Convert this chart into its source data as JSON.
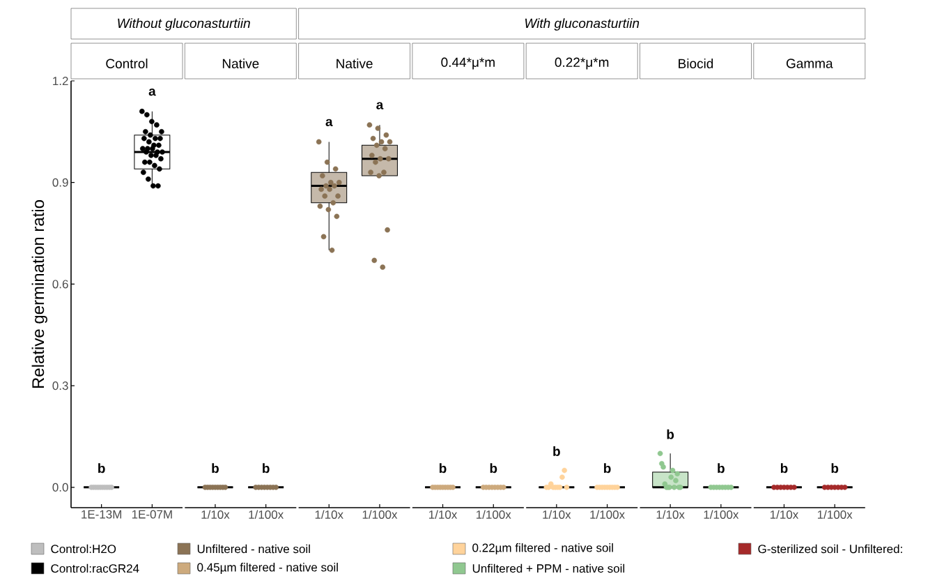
{
  "chart_data": [
    {
      "type": "box",
      "title": "Control",
      "ylabel": "Relative germination ratio",
      "categories": [
        "1E-13M",
        "1E-07M"
      ],
      "ylim": [
        -0.06,
        1.2
      ],
      "yticks": [
        {
          "value": 0,
          "label": "0.0"
        },
        {
          "value": 0.3,
          "label": "0.3"
        },
        {
          "value": 0.6,
          "label": "0.6"
        },
        {
          "value": 0.9,
          "label": "0.9"
        },
        {
          "value": 1.2,
          "label": "1.2"
        }
      ],
      "marker": "circle",
      "legend": "bottom",
      "series": [
        {
          "color": "#000000",
          "boxes": [
            {
              "low": 0,
              "q1": 0,
              "median": 0,
              "q3": 0,
              "high": 0
            },
            null
          ]
        },
        {
          "color": "#ffffff",
          "boxes": [
            null,
            {
              "low": 0.89,
              "q1": 0.94,
              "median": 0.99,
              "q3": 1.04,
              "high": 1.11
            }
          ]
        },
        {
          "type": "scatter",
          "name": "Control:H2O",
          "color": "#bebebe",
          "x": [
            "1E-13M",
            "1E-13M",
            "1E-13M",
            "1E-13M",
            "1E-13M",
            "1E-13M",
            "1E-13M",
            "1E-13M",
            "1E-13M",
            "1E-13M"
          ],
          "values": [
            0,
            0,
            0,
            0,
            0,
            0,
            0,
            0,
            0,
            0
          ]
        },
        {
          "type": "scatter",
          "name": "Control:racGR24",
          "color": "#000000",
          "x": [
            "1E-07M",
            "1E-07M",
            "1E-07M",
            "1E-07M",
            "1E-07M",
            "1E-07M",
            "1E-07M",
            "1E-07M",
            "1E-07M",
            "1E-07M",
            "1E-07M",
            "1E-07M",
            "1E-07M",
            "1E-07M",
            "1E-07M",
            "1E-07M",
            "1E-07M",
            "1E-07M",
            "1E-07M",
            "1E-07M",
            "1E-07M",
            "1E-07M",
            "1E-07M",
            "1E-07M",
            "1E-07M",
            "1E-07M",
            "1E-07M",
            "1E-07M",
            "1E-07M",
            "1E-07M"
          ],
          "values": [
            1.11,
            1.1,
            1.08,
            1.07,
            1.05,
            1.05,
            1.04,
            1.03,
            1.03,
            1.03,
            1.02,
            1.01,
            1.01,
            1.0,
            1.0,
            1.0,
            0.99,
            0.99,
            0.99,
            0.98,
            0.98,
            0.97,
            0.96,
            0.96,
            0.95,
            0.94,
            0.93,
            0.91,
            0.89,
            0.89
          ]
        }
      ],
      "annotations": [
        "b",
        "a"
      ]
    },
    {
      "type": "box",
      "title": "Native",
      "categories": [
        "1/10x",
        "1/100x"
      ],
      "ylim": [
        -0.06,
        1.2
      ],
      "tick_labels": "x",
      "marker": "circle",
      "series": [
        {
          "color": "#000000",
          "boxes": [
            {
              "low": 0,
              "q1": 0,
              "median": 0,
              "q3": 0,
              "high": 0
            },
            {
              "low": 0,
              "q1": 0,
              "median": 0,
              "q3": 0,
              "high": 0
            }
          ]
        },
        {
          "type": "scatter",
          "name": "Unfiltered - native soil",
          "color": "#8b7355",
          "x": [
            "1/10x",
            "1/10x",
            "1/10x",
            "1/10x",
            "1/10x",
            "1/10x",
            "1/10x",
            "1/10x",
            "1/10x",
            "1/100x",
            "1/100x",
            "1/100x",
            "1/100x",
            "1/100x",
            "1/100x",
            "1/100x",
            "1/100x"
          ],
          "values": [
            0,
            0,
            0,
            0,
            0,
            0,
            0,
            0,
            0,
            0,
            0,
            0,
            0,
            0,
            0,
            0,
            0
          ]
        }
      ],
      "annotations": [
        "b",
        "b"
      ]
    },
    {
      "type": "box",
      "title": "Native",
      "categories": [
        "1/10x",
        "1/100x"
      ],
      "ylim": [
        -0.06,
        1.2
      ],
      "tick_labels": "x",
      "marker": "circle",
      "series": [
        {
          "color": "#c5b9aa",
          "boxes": [
            {
              "low": 0.7,
              "q1": 0.84,
              "median": 0.89,
              "q3": 0.93,
              "high": 1.02
            },
            {
              "low": 0.92,
              "q1": 0.92,
              "median": 0.97,
              "q3": 1.01,
              "high": 1.07
            }
          ]
        },
        {
          "type": "scatter",
          "color": "#8b7355",
          "x": [
            "1/10x",
            "1/10x",
            "1/10x",
            "1/10x",
            "1/10x",
            "1/10x",
            "1/10x",
            "1/10x",
            "1/10x",
            "1/10x",
            "1/10x",
            "1/10x",
            "1/10x",
            "1/10x",
            "1/10x",
            "1/10x",
            "1/10x",
            "1/10x",
            "1/100x",
            "1/100x",
            "1/100x",
            "1/100x",
            "1/100x",
            "1/100x",
            "1/100x",
            "1/100x",
            "1/100x",
            "1/100x",
            "1/100x",
            "1/100x",
            "1/100x",
            "1/100x",
            "1/100x",
            "1/100x",
            "1/100x",
            "1/100x"
          ],
          "values": [
            1.02,
            0.96,
            0.94,
            0.92,
            0.9,
            0.9,
            0.89,
            0.89,
            0.88,
            0.88,
            0.86,
            0.86,
            0.84,
            0.83,
            0.82,
            0.8,
            0.74,
            0.7,
            1.07,
            1.06,
            1.04,
            1.03,
            1.02,
            1.02,
            1.01,
            1.0,
            0.98,
            0.97,
            0.97,
            0.96,
            0.93,
            0.93,
            0.92,
            0.76,
            0.67,
            0.65
          ]
        }
      ],
      "annotations": [
        "a",
        "a"
      ]
    },
    {
      "type": "box",
      "title": "0.44*μ*m",
      "categories": [
        "1/10x",
        "1/100x"
      ],
      "ylim": [
        -0.06,
        1.2
      ],
      "tick_labels": "x",
      "marker": "circle",
      "series": [
        {
          "color": "#000000",
          "boxes": [
            {
              "low": 0,
              "q1": 0,
              "median": 0,
              "q3": 0,
              "high": 0
            },
            {
              "low": 0,
              "q1": 0,
              "median": 0,
              "q3": 0,
              "high": 0
            }
          ]
        },
        {
          "type": "scatter",
          "name": "0.45µm filtered - native soil",
          "color": "#cdaa7d",
          "x": [
            "1/10x",
            "1/10x",
            "1/10x",
            "1/10x",
            "1/10x",
            "1/10x",
            "1/10x",
            "1/10x",
            "1/10x",
            "1/100x",
            "1/100x",
            "1/100x",
            "1/100x",
            "1/100x",
            "1/100x",
            "1/100x",
            "1/100x"
          ],
          "values": [
            0,
            0,
            0,
            0,
            0,
            0,
            0,
            0,
            0,
            0,
            0,
            0,
            0,
            0,
            0,
            0,
            0
          ]
        }
      ],
      "annotations": [
        "b",
        "b"
      ]
    },
    {
      "type": "box",
      "title": "0.22*μ*m",
      "categories": [
        "1/10x",
        "1/100x"
      ],
      "ylim": [
        -0.06,
        1.2
      ],
      "tick_labels": "x",
      "marker": "circle",
      "series": [
        {
          "color": "#000000",
          "boxes": [
            {
              "low": 0,
              "q1": 0,
              "median": 0,
              "q3": 0,
              "high": 0
            },
            {
              "low": 0,
              "q1": 0,
              "median": 0,
              "q3": 0,
              "high": 0
            }
          ]
        },
        {
          "type": "scatter",
          "name": "0.22µm filtered - native soil",
          "color": "#ffd39b",
          "x": [
            "1/10x",
            "1/10x",
            "1/10x",
            "1/10x",
            "1/10x",
            "1/10x",
            "1/10x",
            "1/10x",
            "1/10x",
            "1/10x",
            "1/100x",
            "1/100x",
            "1/100x",
            "1/100x",
            "1/100x",
            "1/100x",
            "1/100x",
            "1/100x",
            "1/100x"
          ],
          "values": [
            0,
            0.03,
            0,
            0,
            0.05,
            0,
            0.01,
            0,
            0,
            0,
            0,
            0,
            0,
            0,
            0,
            0,
            0,
            0,
            0
          ]
        }
      ],
      "annotations": [
        "b",
        "b"
      ]
    },
    {
      "type": "box",
      "title": "Biocid",
      "categories": [
        "1/10x",
        "1/100x"
      ],
      "ylim": [
        -0.06,
        1.2
      ],
      "tick_labels": "x",
      "marker": "circle",
      "series": [
        {
          "color": "#c8e4c8",
          "boxes": [
            {
              "low": 0,
              "q1": 0,
              "median": 0,
              "q3": 0.045,
              "high": 0.1
            },
            null
          ]
        },
        {
          "color": "#000000",
          "boxes": [
            null,
            {
              "low": 0,
              "q1": 0,
              "median": 0,
              "q3": 0,
              "high": 0
            }
          ]
        },
        {
          "type": "scatter",
          "name": "Unfiltered + PPM - native soil",
          "color": "#90c890",
          "x": [
            "1/10x",
            "1/10x",
            "1/10x",
            "1/10x",
            "1/10x",
            "1/10x",
            "1/10x",
            "1/10x",
            "1/10x",
            "1/10x",
            "1/10x",
            "1/10x",
            "1/10x",
            "1/10x",
            "1/100x",
            "1/100x",
            "1/100x",
            "1/100x",
            "1/100x",
            "1/100x",
            "1/100x",
            "1/100x"
          ],
          "values": [
            0.1,
            0,
            0.02,
            0.07,
            0,
            0.04,
            0.06,
            0.03,
            0,
            0.01,
            0.05,
            0,
            0,
            0,
            0,
            0,
            0,
            0,
            0,
            0,
            0,
            0
          ]
        }
      ],
      "annotations": [
        "b",
        "b"
      ]
    },
    {
      "type": "box",
      "title": "Gamma",
      "categories": [
        "1/10x",
        "1/100x"
      ],
      "ylim": [
        -0.06,
        1.2
      ],
      "tick_labels": "x",
      "marker": "circle",
      "series": [
        {
          "color": "#000000",
          "boxes": [
            {
              "low": 0,
              "q1": 0,
              "median": 0,
              "q3": 0,
              "high": 0
            },
            {
              "low": 0,
              "q1": 0,
              "median": 0,
              "q3": 0,
              "high": 0
            }
          ]
        },
        {
          "type": "scatter",
          "name": "G-sterilized soil - Unfiltered:",
          "color": "#a52a2a",
          "x": [
            "1/10x",
            "1/10x",
            "1/10x",
            "1/10x",
            "1/10x",
            "1/10x",
            "1/10x",
            "1/100x",
            "1/100x",
            "1/100x",
            "1/100x",
            "1/100x",
            "1/100x",
            "1/100x"
          ],
          "values": [
            0,
            0,
            0,
            0,
            0,
            0,
            0,
            0,
            0,
            0,
            0,
            0,
            0,
            0
          ]
        }
      ],
      "annotations": [
        "b",
        "b"
      ]
    },
    {
      "type": "other",
      "annotations": [
        "Without gluconasturtiin",
        "With gluconasturtiin"
      ]
    }
  ]
}
